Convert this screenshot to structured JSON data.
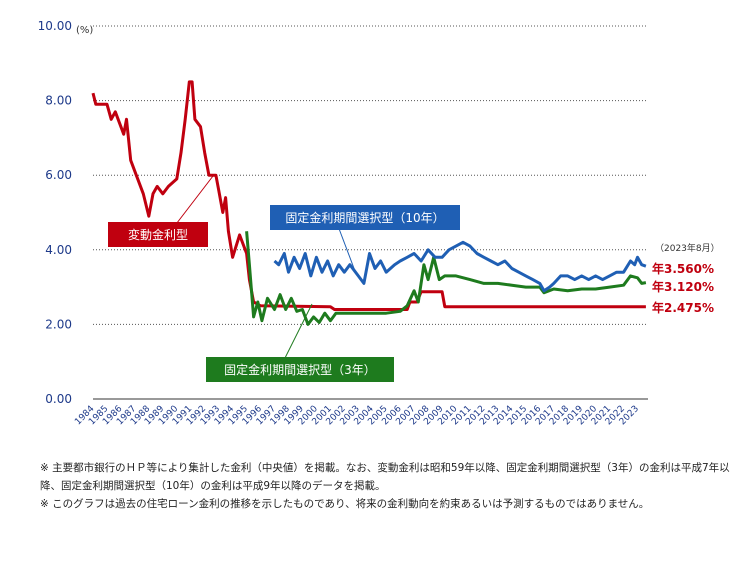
{
  "chart_data": {
    "type": "line",
    "unit_label": "(%)",
    "ylim": [
      0,
      10
    ],
    "yticks": [
      "0.00",
      "2.00",
      "4.00",
      "6.00",
      "8.00",
      "10.00"
    ],
    "xlim": [
      1984,
      2023.75
    ],
    "xticks": [
      "1984",
      "1985",
      "1986",
      "1987",
      "1988",
      "1989",
      "1990",
      "1991",
      "1992",
      "1993",
      "1994",
      "1995",
      "1996",
      "1997",
      "1998",
      "1999",
      "2000",
      "2001",
      "2002",
      "2003",
      "2004",
      "2005",
      "2006",
      "2007",
      "2008",
      "2009",
      "2010",
      "2011",
      "2012",
      "2013",
      "2014",
      "2015",
      "2016",
      "2017",
      "2018",
      "2019",
      "2020",
      "2021",
      "2022",
      "2023"
    ],
    "grid": "horizontal dotted",
    "series": [
      {
        "name": "変動金利型",
        "color": "#c0000f",
        "end_label": "年2.475%",
        "points": [
          [
            1984,
            8.2
          ],
          [
            1984.2,
            7.9
          ],
          [
            1985,
            7.9
          ],
          [
            1985.3,
            7.5
          ],
          [
            1985.6,
            7.7
          ],
          [
            1986,
            7.3
          ],
          [
            1986.2,
            7.1
          ],
          [
            1986.4,
            7.5
          ],
          [
            1986.7,
            6.4
          ],
          [
            1987.6,
            5.5
          ],
          [
            1988,
            4.9
          ],
          [
            1988.3,
            5.5
          ],
          [
            1988.6,
            5.7
          ],
          [
            1989,
            5.5
          ],
          [
            1989.4,
            5.7
          ],
          [
            1990,
            5.9
          ],
          [
            1990.3,
            6.6
          ],
          [
            1990.6,
            7.5
          ],
          [
            1990.9,
            8.5
          ],
          [
            1991.1,
            8.5
          ],
          [
            1991.3,
            7.5
          ],
          [
            1991.7,
            7.3
          ],
          [
            1992,
            6.6
          ],
          [
            1992.3,
            6.0
          ],
          [
            1992.8,
            6.0
          ],
          [
            1993,
            5.6
          ],
          [
            1993.3,
            5.0
          ],
          [
            1993.5,
            5.4
          ],
          [
            1993.7,
            4.5
          ],
          [
            1994,
            3.8
          ],
          [
            1994.5,
            4.4
          ],
          [
            1995,
            3.9
          ],
          [
            1995.2,
            3.2
          ],
          [
            1995.5,
            2.6
          ],
          [
            1996,
            2.5
          ],
          [
            2001,
            2.475
          ],
          [
            2001.3,
            2.4
          ],
          [
            2006.5,
            2.4
          ],
          [
            2006.7,
            2.6
          ],
          [
            2007.2,
            2.6
          ],
          [
            2007.5,
            2.875
          ],
          [
            2009,
            2.875
          ],
          [
            2009.2,
            2.475
          ],
          [
            2023.6,
            2.475
          ]
        ]
      },
      {
        "name": "固定金利期間選択型（3年）",
        "color": "#1e7b1e",
        "end_label": "年3.120%",
        "points": [
          [
            1995,
            4.5
          ],
          [
            1995.2,
            3.6
          ],
          [
            1995.5,
            2.2
          ],
          [
            1995.8,
            2.6
          ],
          [
            1996.1,
            2.1
          ],
          [
            1996.5,
            2.7
          ],
          [
            1997,
            2.4
          ],
          [
            1997.4,
            2.8
          ],
          [
            1997.8,
            2.4
          ],
          [
            1998.2,
            2.7
          ],
          [
            1998.6,
            2.35
          ],
          [
            1999,
            2.4
          ],
          [
            1999.4,
            2.0
          ],
          [
            1999.8,
            2.2
          ],
          [
            2000.2,
            2.05
          ],
          [
            2000.6,
            2.3
          ],
          [
            2001,
            2.1
          ],
          [
            2001.4,
            2.3
          ],
          [
            2003,
            2.3
          ],
          [
            2005,
            2.3
          ],
          [
            2006,
            2.35
          ],
          [
            2006.5,
            2.5
          ],
          [
            2007,
            2.9
          ],
          [
            2007.3,
            2.6
          ],
          [
            2007.7,
            3.6
          ],
          [
            2008,
            3.2
          ],
          [
            2008.4,
            3.8
          ],
          [
            2008.8,
            3.2
          ],
          [
            2009.2,
            3.3
          ],
          [
            2010,
            3.3
          ],
          [
            2011,
            3.2
          ],
          [
            2012,
            3.1
          ],
          [
            2013,
            3.1
          ],
          [
            2014,
            3.05
          ],
          [
            2015,
            3.0
          ],
          [
            2016,
            3.0
          ],
          [
            2016.3,
            2.85
          ],
          [
            2017,
            2.95
          ],
          [
            2018,
            2.9
          ],
          [
            2019,
            2.95
          ],
          [
            2020,
            2.95
          ],
          [
            2021,
            3.0
          ],
          [
            2022,
            3.05
          ],
          [
            2022.5,
            3.3
          ],
          [
            2023,
            3.25
          ],
          [
            2023.3,
            3.1
          ],
          [
            2023.6,
            3.12
          ]
        ]
      },
      {
        "name": "固定金利期間選択型（10年）",
        "color": "#1f5fb4",
        "end_label": "年3.560%",
        "points": [
          [
            1997,
            3.7
          ],
          [
            1997.3,
            3.6
          ],
          [
            1997.7,
            3.9
          ],
          [
            1998,
            3.4
          ],
          [
            1998.4,
            3.8
          ],
          [
            1998.8,
            3.5
          ],
          [
            1999.2,
            3.9
          ],
          [
            1999.6,
            3.3
          ],
          [
            2000,
            3.8
          ],
          [
            2000.4,
            3.4
          ],
          [
            2000.8,
            3.7
          ],
          [
            2001.2,
            3.3
          ],
          [
            2001.6,
            3.6
          ],
          [
            2002,
            3.4
          ],
          [
            2002.4,
            3.6
          ],
          [
            2003,
            3.3
          ],
          [
            2003.4,
            3.1
          ],
          [
            2003.8,
            3.9
          ],
          [
            2004.2,
            3.5
          ],
          [
            2004.6,
            3.7
          ],
          [
            2005,
            3.4
          ],
          [
            2005.6,
            3.6
          ],
          [
            2006,
            3.7
          ],
          [
            2006.5,
            3.8
          ],
          [
            2007,
            3.9
          ],
          [
            2007.5,
            3.7
          ],
          [
            2008,
            4.0
          ],
          [
            2008.5,
            3.8
          ],
          [
            2009,
            3.8
          ],
          [
            2009.5,
            4.0
          ],
          [
            2010,
            4.1
          ],
          [
            2010.5,
            4.2
          ],
          [
            2011,
            4.1
          ],
          [
            2011.5,
            3.9
          ],
          [
            2012,
            3.8
          ],
          [
            2012.5,
            3.7
          ],
          [
            2013,
            3.6
          ],
          [
            2013.5,
            3.7
          ],
          [
            2014,
            3.5
          ],
          [
            2014.5,
            3.4
          ],
          [
            2015,
            3.3
          ],
          [
            2015.5,
            3.2
          ],
          [
            2016,
            3.1
          ],
          [
            2016.3,
            2.9
          ],
          [
            2016.7,
            3.0
          ],
          [
            2017,
            3.1
          ],
          [
            2017.5,
            3.3
          ],
          [
            2018,
            3.3
          ],
          [
            2018.5,
            3.2
          ],
          [
            2019,
            3.3
          ],
          [
            2019.5,
            3.2
          ],
          [
            2020,
            3.3
          ],
          [
            2020.5,
            3.2
          ],
          [
            2021,
            3.3
          ],
          [
            2021.5,
            3.4
          ],
          [
            2022,
            3.4
          ],
          [
            2022.5,
            3.7
          ],
          [
            2022.8,
            3.6
          ],
          [
            2023,
            3.8
          ],
          [
            2023.3,
            3.6
          ],
          [
            2023.6,
            3.56
          ]
        ]
      }
    ],
    "as_of_label": "（2023年8月）"
  },
  "notes": [
    "※ 主要都市銀行のＨＰ等により集計した金利（中央値）を掲載。なお、変動金利は昭和59年以降、固定金利期間選択型（3年）の金利は平成7年以降、固定金利期間選択型（10年）の金利は平成9年以降のデータを掲載。",
    "※ このグラフは過去の住宅ローン金利の推移を示したものであり、将来の金利動向を約束あるいは予測するものではありません。"
  ]
}
